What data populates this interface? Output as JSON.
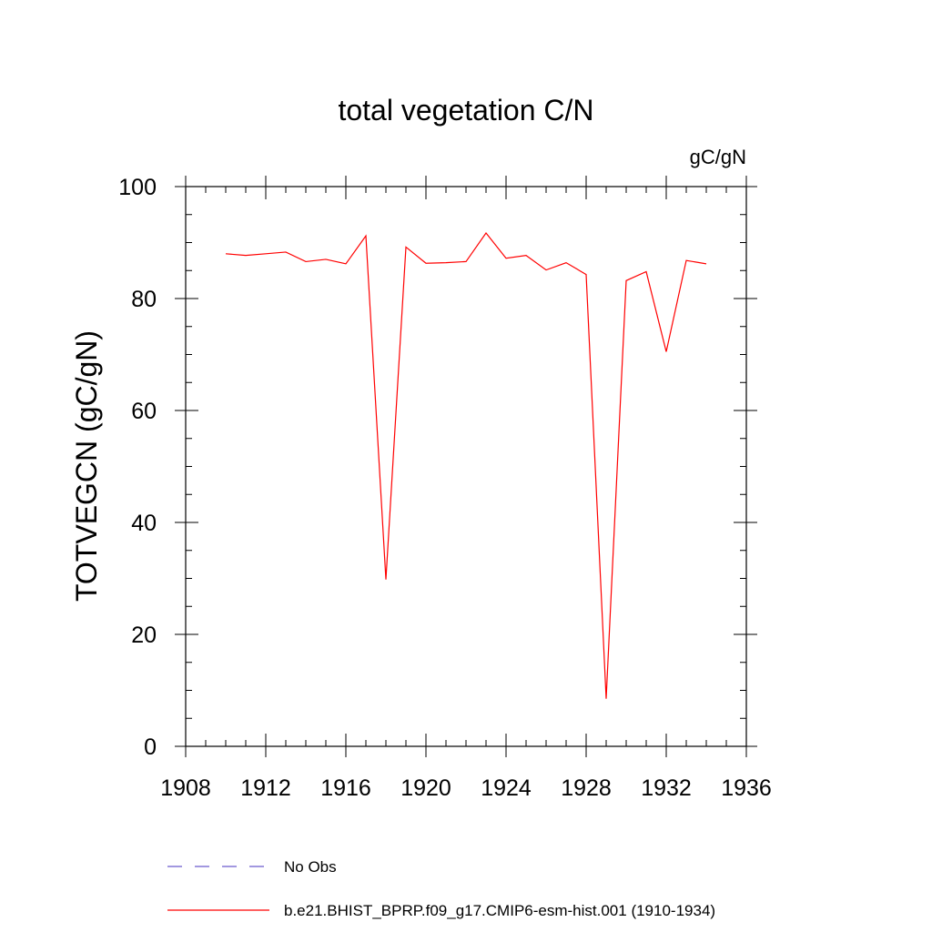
{
  "chart_data": {
    "type": "line",
    "title": "total vegetation C/N",
    "units": "gC/gN",
    "ylabel": "TOTVEGCN  (gC/gN)",
    "xlabel": "",
    "xlim": [
      1908,
      1936
    ],
    "ylim": [
      0,
      100
    ],
    "x_ticks": [
      1908,
      1912,
      1916,
      1920,
      1924,
      1928,
      1932,
      1936
    ],
    "y_ticks": [
      0,
      20,
      40,
      60,
      80,
      100
    ],
    "grid": false,
    "legend_position": "bottom",
    "series": [
      {
        "name": "No Obs",
        "color": "#6a5acd",
        "style": "dashed",
        "x": [],
        "y": []
      },
      {
        "name": "b.e21.BHIST_BPRP.f09_g17.CMIP6-esm-hist.001 (1910-1934)",
        "color": "#ff0000",
        "style": "solid",
        "x": [
          1910,
          1911,
          1912,
          1913,
          1914,
          1915,
          1916,
          1917,
          1918,
          1919,
          1920,
          1921,
          1922,
          1923,
          1924,
          1925,
          1926,
          1927,
          1928,
          1929,
          1930,
          1931,
          1932,
          1933,
          1934
        ],
        "y": [
          88.0,
          87.7,
          88.0,
          88.3,
          86.6,
          87.0,
          86.2,
          91.2,
          29.8,
          89.2,
          86.3,
          86.4,
          86.6,
          91.7,
          87.2,
          87.7,
          85.1,
          86.4,
          84.3,
          8.5,
          83.2,
          84.8,
          70.5,
          86.8,
          86.2
        ]
      }
    ]
  }
}
